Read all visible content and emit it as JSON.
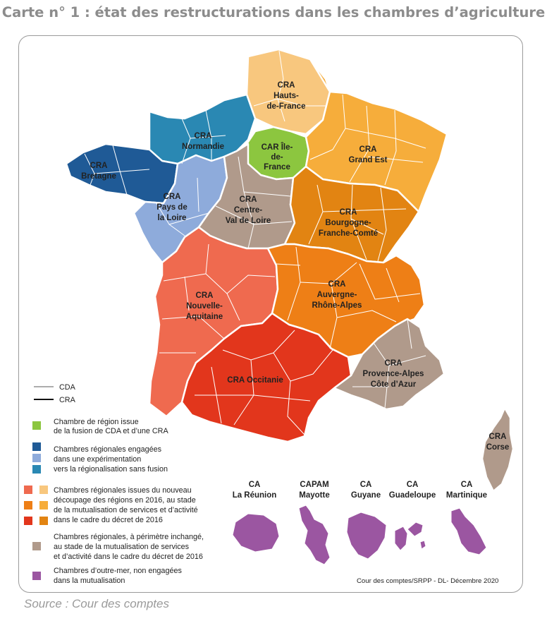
{
  "title": "Carte n° 1 : état des restructurations dans les chambres d’agriculture",
  "source": "Source : Cour des comptes",
  "credit": "Cour des comptes/SRPP - DL- Décembre 2020",
  "colors": {
    "green": "#8cc63f",
    "dark_blue": "#1f5a96",
    "light_blue": "#8eabdb",
    "teal": "#2a88b3",
    "salmon": "#ef6a4f",
    "light_orange": "#f8c77e",
    "orange": "#ee7f16",
    "yellow_orange": "#f6ad3b",
    "red": "#e2361c",
    "dark_orange": "#e28412",
    "taupe": "#b09a8b",
    "purple": "#9b56a1"
  },
  "regions": {
    "hauts": [
      "CRA",
      "Hauts-",
      "de-France"
    ],
    "normandie": [
      "CRA",
      "Normandie"
    ],
    "idf": [
      "CAR Île-",
      "de-",
      "France"
    ],
    "grandest": [
      "CRA",
      "Grand Est"
    ],
    "bretagne": [
      "CRA",
      "Bretagne"
    ],
    "pdl": [
      "CRA",
      "Pays de",
      "la Loire"
    ],
    "cvl": [
      "CRA",
      "Centre-",
      "Val de Loire"
    ],
    "bfc": [
      "CRA",
      "Bourgogne-",
      "Franche-Comté"
    ],
    "na": [
      "CRA",
      "Nouvelle-",
      "Aquitaine"
    ],
    "ara": [
      "CRA",
      "Auvergne-",
      "Rhône-Alpes"
    ],
    "occ": [
      "CRA Occitanie"
    ],
    "paca": [
      "CRA",
      "Provence-Alpes",
      "Côte d’Azur"
    ],
    "corse": [
      "CRA",
      "Corse"
    ]
  },
  "overseas": [
    {
      "l1": "CA",
      "l2": "La Réunion"
    },
    {
      "l1": "CAPAM",
      "l2": "Mayotte"
    },
    {
      "l1": "CA",
      "l2": "Guyane"
    },
    {
      "l1": "CA",
      "l2": "Guadeloupe"
    },
    {
      "l1": "CA",
      "l2": "Martinique"
    }
  ],
  "legend": {
    "lines": [
      "CDA",
      "CRA"
    ],
    "g1": [
      "Chambre de région issue",
      "de la fusion de CDA et d’une CRA"
    ],
    "g2": [
      "Chambres régionales engagées",
      "dans une expérimentation",
      "vers la régionalisation sans fusion"
    ],
    "g3": [
      "Chambres régionales issues du nouveau",
      "découpage des régions en 2016, au stade",
      "de la mutualisation de services et d’activité",
      "dans le cadre du décret de 2016"
    ],
    "g4": [
      "Chambres régionales, à périmètre inchangé,",
      "au stade de la mutualisation de services",
      "et d’activité dans le cadre du décret de 2016"
    ],
    "g5": [
      "Chambres d’outre-mer, non engagées",
      "dans la mutualisation"
    ]
  }
}
